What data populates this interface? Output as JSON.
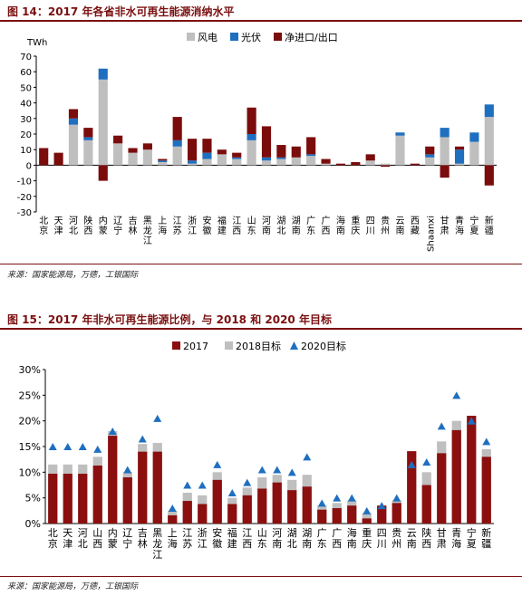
{
  "charts": [
    {
      "title": "图 14：2017 年各省非水可再生能源消纳水平",
      "source": "来源：国家能源局，万德，工银国际"
    },
    {
      "title": "图 15：2017 年非水可再生能源比例，与 2018 和 2020 年目标",
      "source": "来源：国家能源局，万德，工银国际"
    }
  ],
  "chart_data": [
    {
      "type": "bar",
      "stacked": true,
      "ylabel": "TWh",
      "ylim": [
        -30,
        70
      ],
      "yticks": [
        -30,
        -20,
        -10,
        0,
        10,
        20,
        30,
        40,
        50,
        60,
        70
      ],
      "legend_position": "top",
      "categories": [
        "北京",
        "天津",
        "河北",
        "陕西",
        "内蒙",
        "辽宁",
        "吉林",
        "黑龙江",
        "上海",
        "江苏",
        "浙江",
        "安徽",
        "福建",
        "江西",
        "山东",
        "河南",
        "湖北",
        "湖南",
        "广东",
        "广西",
        "海南",
        "重庆",
        "四川",
        "贵州",
        "云南",
        "西藏",
        "Shaanxi",
        "甘肃",
        "青海",
        "宁夏",
        "新疆"
      ],
      "series": [
        {
          "name": "风电",
          "color": "#bfbfbf",
          "values": [
            0,
            0,
            26,
            16,
            55,
            14,
            8,
            10,
            2,
            12,
            1,
            4,
            7,
            4,
            16,
            3,
            4,
            5,
            6,
            1,
            0,
            0,
            3,
            1,
            19,
            0,
            5,
            18,
            1,
            15,
            31
          ]
        },
        {
          "name": "光伏",
          "color": "#1f6fc0",
          "values": [
            0,
            0,
            4,
            2,
            7,
            0,
            0,
            0,
            1,
            4,
            2,
            4,
            0,
            1,
            4,
            2,
            1,
            0,
            1,
            0,
            0,
            0,
            0,
            0,
            2,
            0,
            2,
            6,
            9,
            6,
            8
          ]
        },
        {
          "name": "净进口/出口",
          "color": "#7b0c0c",
          "values": [
            11,
            8,
            6,
            6,
            -10,
            5,
            3,
            4,
            1,
            15,
            14,
            9,
            3,
            3,
            17,
            20,
            8,
            7,
            11,
            3,
            1,
            2,
            4,
            -1,
            0,
            1,
            5,
            -8,
            2,
            0,
            -13
          ]
        }
      ]
    },
    {
      "type": "bar",
      "ylim": [
        0,
        30
      ],
      "yticks": [
        "0%",
        "5%",
        "10%",
        "15%",
        "20%",
        "25%",
        "30%"
      ],
      "legend_position": "top",
      "categories": [
        "北京",
        "天津",
        "河北",
        "山西",
        "内蒙",
        "辽宁",
        "吉林",
        "黑龙江",
        "上海",
        "江苏",
        "浙江",
        "安徽",
        "福建",
        "江西",
        "山东",
        "河南",
        "湖北",
        "湖南",
        "广东",
        "广西",
        "海南",
        "重庆",
        "四川",
        "贵州",
        "云南",
        "陕西",
        "甘肃",
        "青海",
        "宁夏",
        "新疆"
      ],
      "series": [
        {
          "name": "2017",
          "color": "#8b0f0f",
          "values": [
            9.7,
            9.7,
            9.7,
            11.3,
            17.1,
            9.0,
            14.0,
            14.0,
            1.6,
            4.4,
            3.8,
            8.5,
            3.8,
            5.5,
            6.8,
            8.0,
            6.5,
            7.2,
            2.7,
            3.0,
            3.5,
            1.0,
            3.5,
            4.0,
            14.1,
            7.5,
            13.7,
            18.2,
            21.0,
            13.0
          ]
        },
        {
          "name": "2018目标",
          "color": "#bfbfbf",
          "values": [
            11.5,
            11.5,
            11.5,
            13.0,
            18.0,
            10.0,
            15.5,
            15.7,
            2.5,
            6.0,
            5.5,
            10.0,
            5.0,
            7.0,
            9.0,
            9.5,
            8.5,
            9.5,
            3.5,
            4.0,
            4.5,
            2.0,
            3.5,
            4.5,
            11.5,
            10.0,
            16.0,
            20.0,
            20.0,
            14.5
          ]
        },
        {
          "name": "2020目标",
          "color": "#1f6fc0",
          "marker": "triangle",
          "values": [
            15.0,
            15.0,
            15.0,
            14.5,
            18.0,
            10.5,
            16.5,
            20.5,
            3.0,
            7.5,
            7.5,
            11.5,
            6.0,
            8.0,
            10.5,
            10.5,
            10.0,
            13.0,
            4.0,
            5.0,
            5.0,
            2.5,
            3.5,
            5.0,
            11.5,
            12.0,
            19.0,
            25.0,
            20.0,
            16.0
          ]
        }
      ]
    }
  ]
}
